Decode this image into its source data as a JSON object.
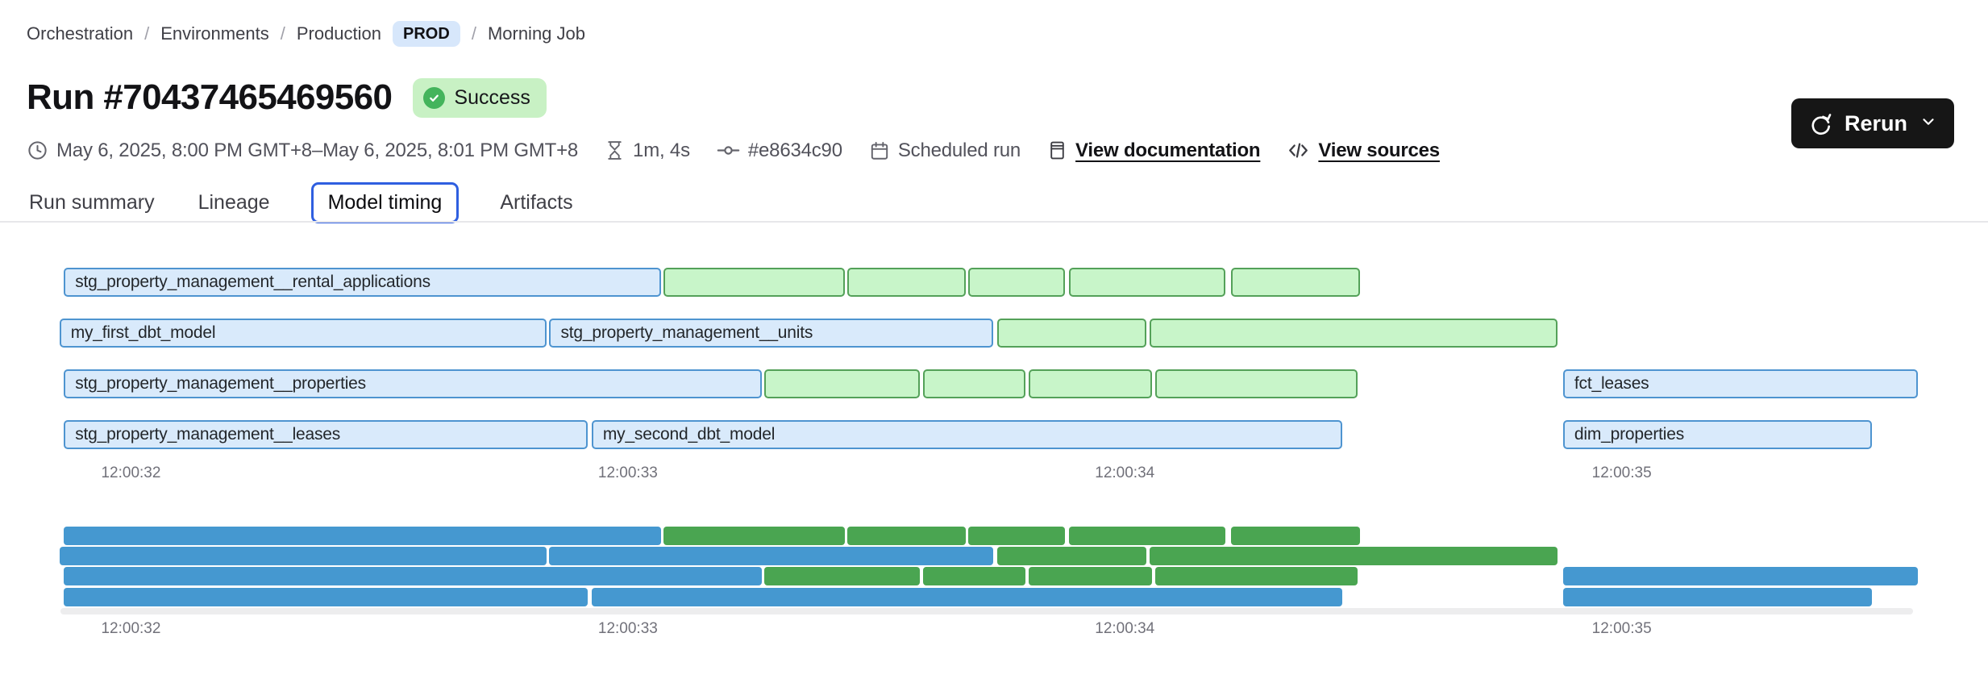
{
  "breadcrumb": {
    "separator": "/",
    "links": [
      "Orchestration",
      "Environments",
      "Production"
    ],
    "env_badge": "PROD",
    "current": "Morning Job"
  },
  "header": {
    "title": "Run #70437465469560",
    "status": "Success",
    "rerun_label": "Rerun"
  },
  "meta": {
    "items": [
      {
        "icon": "clock-icon",
        "text": "May 6, 2025, 8:00 PM GMT+8–May 6, 2025, 8:01 PM GMT+8",
        "link": false
      },
      {
        "icon": "hourglass-icon",
        "text": "1m, 4s",
        "link": false
      },
      {
        "icon": "commit-icon",
        "text": "#e8634c90",
        "link": false
      },
      {
        "icon": "calendar-icon",
        "text": "Scheduled run",
        "link": false
      },
      {
        "icon": "document-icon",
        "text": "View documentation",
        "link": true
      },
      {
        "icon": "code-icon",
        "text": "View sources",
        "link": true
      }
    ]
  },
  "tabs": [
    {
      "label": "Run summary",
      "selected": false
    },
    {
      "label": "Lineage",
      "selected": false
    },
    {
      "label": "Model timing",
      "selected": true
    },
    {
      "label": "Artifacts",
      "selected": false
    }
  ],
  "chart_data": {
    "type": "gantt",
    "title": "Model timing",
    "time_units": "seconds after 12:00:00",
    "x_axis": {
      "t_min": 31.85,
      "t_span": 3.78,
      "ticks": [
        {
          "t": 32,
          "label": "12:00:32"
        },
        {
          "t": 33,
          "label": "12:00:33"
        },
        {
          "t": 34,
          "label": "12:00:34"
        },
        {
          "t": 35,
          "label": "12:00:35"
        }
      ]
    },
    "rows": [
      [
        {
          "label": "stg_property_management__rental_applications",
          "start": 31.865,
          "end": 33.066,
          "color": "blue"
        },
        {
          "label": "",
          "start": 33.071,
          "end": 33.437,
          "color": "green"
        },
        {
          "label": "",
          "start": 33.441,
          "end": 33.68,
          "color": "green"
        },
        {
          "label": "",
          "start": 33.685,
          "end": 33.88,
          "color": "green"
        },
        {
          "label": "",
          "start": 33.888,
          "end": 34.203,
          "color": "green"
        },
        {
          "label": "",
          "start": 34.213,
          "end": 34.474,
          "color": "green"
        }
      ],
      [
        {
          "label": "my_first_dbt_model",
          "start": 31.856,
          "end": 32.836,
          "color": "blue"
        },
        {
          "label": "stg_property_management__units",
          "start": 32.842,
          "end": 33.735,
          "color": "blue"
        },
        {
          "label": "",
          "start": 33.743,
          "end": 34.044,
          "color": "green"
        },
        {
          "label": "",
          "start": 34.05,
          "end": 34.87,
          "color": "green"
        }
      ],
      [
        {
          "label": "stg_property_management__properties",
          "start": 31.865,
          "end": 33.269,
          "color": "blue"
        },
        {
          "label": "",
          "start": 33.274,
          "end": 33.588,
          "color": "green"
        },
        {
          "label": "",
          "start": 33.594,
          "end": 33.8,
          "color": "green"
        },
        {
          "label": "",
          "start": 33.807,
          "end": 34.055,
          "color": "green"
        },
        {
          "label": "",
          "start": 34.062,
          "end": 34.469,
          "color": "green"
        },
        {
          "label": "fct_leases",
          "start": 34.882,
          "end": 35.596,
          "color": "blue"
        }
      ],
      [
        {
          "label": "stg_property_management__leases",
          "start": 31.865,
          "end": 32.919,
          "color": "blue"
        },
        {
          "label": "my_second_dbt_model",
          "start": 32.927,
          "end": 34.437,
          "color": "blue"
        },
        {
          "label": "dim_properties",
          "start": 34.882,
          "end": 35.503,
          "color": "blue"
        }
      ]
    ]
  },
  "colors": {
    "bar_blue_fill": "#d9eafb",
    "bar_blue_border": "#4e94d0",
    "bar_green_fill": "#c8f5c9",
    "bar_green_border": "#54a159",
    "mini_blue": "#4598d0",
    "mini_green": "#4aa551",
    "tab_accent": "#2f5fe0",
    "success_bg": "#c8f1c4",
    "success_icon": "#44b45c",
    "prod_badge_bg": "#d7e7fb",
    "rerun_bg": "#161616"
  }
}
